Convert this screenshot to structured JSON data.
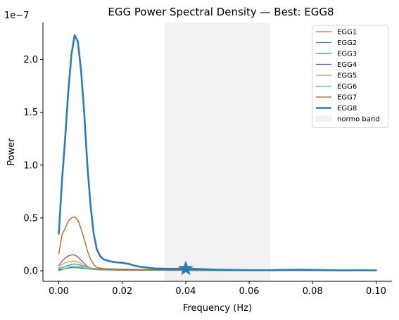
{
  "chart_data": {
    "type": "line",
    "title": "EGG Power Spectral Density — Best: EGG8",
    "xlabel": "Frequency (Hz)",
    "ylabel": "Power",
    "y_offset_label": "1e−7",
    "xlim": [
      -0.005,
      0.105
    ],
    "ylim": [
      -0.1,
      2.35
    ],
    "y_scale_exponent": -7,
    "x_ticks": [
      0.0,
      0.02,
      0.04,
      0.06,
      0.08,
      0.1
    ],
    "x_tick_labels": [
      "0.00",
      "0.02",
      "0.04",
      "0.06",
      "0.08",
      "0.10"
    ],
    "y_ticks": [
      0.0,
      0.5,
      1.0,
      1.5,
      2.0
    ],
    "y_tick_labels": [
      "0.0",
      "0.5",
      "1.0",
      "1.5",
      "2.0"
    ],
    "grid": false,
    "legend_position": "top-right",
    "band": {
      "name": "normo band",
      "x_range": [
        0.0333,
        0.0667
      ],
      "color": "#f2f2f2"
    },
    "best_marker": {
      "x": 0.04,
      "y": 0.02,
      "color": "#2b7bba"
    },
    "series": [
      {
        "name": "EGG1",
        "color": "#e05c4b",
        "width": 1.3,
        "x": [
          0.0,
          0.001,
          0.002,
          0.003,
          0.004,
          0.005,
          0.006,
          0.007,
          0.008,
          0.01,
          0.012,
          0.015,
          0.02,
          0.03,
          0.04,
          0.06,
          0.08,
          0.1
        ],
        "y": [
          0.01,
          0.015,
          0.02,
          0.025,
          0.028,
          0.03,
          0.028,
          0.025,
          0.02,
          0.015,
          0.01,
          0.008,
          0.006,
          0.004,
          0.003,
          0.002,
          0.002,
          0.002
        ]
      },
      {
        "name": "EGG2",
        "color": "#3a8bb0",
        "width": 1.3,
        "x": [
          0.0,
          0.001,
          0.002,
          0.003,
          0.004,
          0.005,
          0.006,
          0.007,
          0.008,
          0.01,
          0.012,
          0.015,
          0.02,
          0.03,
          0.04,
          0.06,
          0.08,
          0.1
        ],
        "y": [
          0.02,
          0.03,
          0.04,
          0.05,
          0.06,
          0.065,
          0.06,
          0.05,
          0.04,
          0.025,
          0.015,
          0.01,
          0.007,
          0.005,
          0.004,
          0.003,
          0.002,
          0.002
        ]
      },
      {
        "name": "EGG3",
        "color": "#27a35a",
        "width": 1.3,
        "x": [
          0.0,
          0.001,
          0.002,
          0.003,
          0.004,
          0.005,
          0.006,
          0.007,
          0.008,
          0.01,
          0.012,
          0.015,
          0.02,
          0.03,
          0.04,
          0.06,
          0.08,
          0.1
        ],
        "y": [
          0.01,
          0.015,
          0.02,
          0.025,
          0.03,
          0.03,
          0.028,
          0.025,
          0.022,
          0.015,
          0.01,
          0.008,
          0.006,
          0.004,
          0.003,
          0.002,
          0.002,
          0.002
        ]
      },
      {
        "name": "EGG4",
        "color": "#8e44ad",
        "width": 1.3,
        "x": [
          0.0,
          0.001,
          0.002,
          0.003,
          0.004,
          0.005,
          0.006,
          0.007,
          0.008,
          0.009,
          0.01,
          0.012,
          0.015,
          0.02,
          0.03,
          0.04,
          0.06,
          0.08,
          0.1
        ],
        "y": [
          0.05,
          0.09,
          0.12,
          0.14,
          0.15,
          0.15,
          0.13,
          0.1,
          0.07,
          0.04,
          0.025,
          0.015,
          0.01,
          0.007,
          0.005,
          0.004,
          0.003,
          0.002,
          0.002
        ]
      },
      {
        "name": "EGG5",
        "color": "#e8963c",
        "width": 1.3,
        "x": [
          0.0,
          0.001,
          0.002,
          0.003,
          0.004,
          0.005,
          0.006,
          0.007,
          0.008,
          0.009,
          0.01,
          0.012,
          0.015,
          0.02,
          0.03,
          0.04,
          0.06,
          0.08,
          0.1
        ],
        "y": [
          0.03,
          0.06,
          0.075,
          0.085,
          0.09,
          0.09,
          0.085,
          0.07,
          0.05,
          0.035,
          0.025,
          0.02,
          0.018,
          0.015,
          0.01,
          0.006,
          0.004,
          0.003,
          0.002
        ]
      },
      {
        "name": "EGG6",
        "color": "#3cb89a",
        "width": 1.3,
        "x": [
          0.0,
          0.001,
          0.002,
          0.003,
          0.004,
          0.005,
          0.006,
          0.007,
          0.008,
          0.01,
          0.012,
          0.015,
          0.02,
          0.03,
          0.04,
          0.06,
          0.08,
          0.1
        ],
        "y": [
          0.0,
          0.01,
          0.02,
          0.03,
          0.04,
          0.045,
          0.04,
          0.035,
          0.025,
          0.015,
          0.01,
          0.007,
          0.005,
          0.004,
          0.003,
          0.002,
          0.002,
          0.002
        ]
      },
      {
        "name": "EGG7",
        "color": "#cc5a10",
        "width": 1.3,
        "x": [
          0.0,
          0.001,
          0.002,
          0.003,
          0.004,
          0.005,
          0.006,
          0.007,
          0.008,
          0.009,
          0.01,
          0.011,
          0.012,
          0.014,
          0.016,
          0.02,
          0.03,
          0.04,
          0.06,
          0.08,
          0.1
        ],
        "y": [
          0.16,
          0.34,
          0.4,
          0.47,
          0.5,
          0.51,
          0.48,
          0.4,
          0.3,
          0.19,
          0.11,
          0.06,
          0.03,
          0.02,
          0.018,
          0.015,
          0.01,
          0.008,
          0.005,
          0.004,
          0.003
        ]
      },
      {
        "name": "EGG8",
        "color": "#2b7bba",
        "width": 2.6,
        "x": [
          0.0,
          0.001,
          0.002,
          0.003,
          0.004,
          0.005,
          0.006,
          0.007,
          0.008,
          0.009,
          0.01,
          0.011,
          0.012,
          0.013,
          0.014,
          0.016,
          0.018,
          0.02,
          0.022,
          0.025,
          0.03,
          0.035,
          0.04,
          0.045,
          0.05,
          0.055,
          0.06,
          0.065,
          0.07,
          0.075,
          0.08,
          0.085,
          0.09,
          0.095,
          0.1
        ],
        "y": [
          0.35,
          0.85,
          1.25,
          1.7,
          2.05,
          2.23,
          2.17,
          1.9,
          1.5,
          1.0,
          0.62,
          0.35,
          0.2,
          0.14,
          0.11,
          0.09,
          0.08,
          0.075,
          0.065,
          0.04,
          0.022,
          0.018,
          0.02,
          0.015,
          0.01,
          0.008,
          0.006,
          0.005,
          0.008,
          0.01,
          0.009,
          0.005,
          0.004,
          0.005,
          0.004
        ]
      }
    ]
  }
}
